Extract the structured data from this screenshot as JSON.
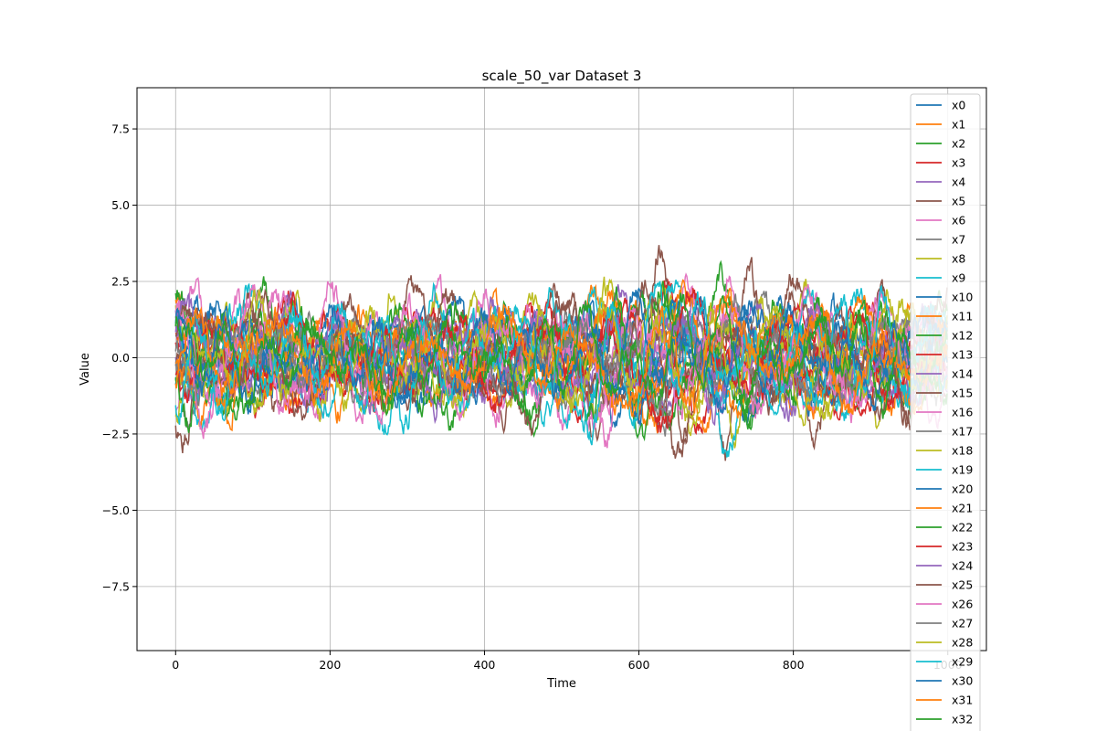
{
  "chart_data": {
    "type": "line",
    "title": "scale_50_var Dataset 3",
    "xlabel": "Time",
    "ylabel": "Value",
    "xlim": [
      -50,
      1050
    ],
    "ylim": [
      -9.6,
      8.85
    ],
    "xticks": [
      0,
      200,
      400,
      600,
      800,
      1000
    ],
    "xtick_labels": [
      "0",
      "200",
      "400",
      "600",
      "800",
      "1000"
    ],
    "yticks": [
      -7.5,
      -5.0,
      -2.5,
      0.0,
      2.5,
      5.0,
      7.5
    ],
    "ytick_labels": [
      "−7.5",
      "−5.0",
      "−2.5",
      "0.0",
      "2.5",
      "5.0",
      "7.5"
    ],
    "grid": true,
    "legend_position": "upper-right",
    "n_points": 1000,
    "palette": [
      "#1f77b4",
      "#ff7f0e",
      "#2ca02c",
      "#d62728",
      "#9467bd",
      "#8c564b",
      "#e377c2",
      "#7f7f7f",
      "#bcbd22",
      "#17becf"
    ],
    "series": [
      {
        "name": "x0",
        "amplitude": 1.6
      },
      {
        "name": "x1",
        "amplitude": 1.7
      },
      {
        "name": "x2",
        "amplitude": 1.9
      },
      {
        "name": "x3",
        "amplitude": 1.8
      },
      {
        "name": "x4",
        "amplitude": 1.6
      },
      {
        "name": "x5",
        "amplitude": 2.3
      },
      {
        "name": "x6",
        "amplitude": 2.0
      },
      {
        "name": "x7",
        "amplitude": 1.5
      },
      {
        "name": "x8",
        "amplitude": 2.0
      },
      {
        "name": "x9",
        "amplitude": 2.2
      },
      {
        "name": "x10",
        "amplitude": 1.5
      },
      {
        "name": "x11",
        "amplitude": 1.6
      },
      {
        "name": "x12",
        "amplitude": 1.7
      },
      {
        "name": "x13",
        "amplitude": 1.6
      },
      {
        "name": "x14",
        "amplitude": 1.5
      },
      {
        "name": "x15",
        "amplitude": 1.8
      },
      {
        "name": "x16",
        "amplitude": 1.7
      },
      {
        "name": "x17",
        "amplitude": 1.4
      },
      {
        "name": "x18",
        "amplitude": 1.6
      },
      {
        "name": "x19",
        "amplitude": 1.7
      },
      {
        "name": "x20",
        "amplitude": 1.4
      },
      {
        "name": "x21",
        "amplitude": 1.5
      },
      {
        "name": "x22",
        "amplitude": 1.6
      },
      {
        "name": "x23",
        "amplitude": 1.5
      },
      {
        "name": "x24",
        "amplitude": 1.4
      },
      {
        "name": "x25",
        "amplitude": 2.1
      },
      {
        "name": "x26",
        "amplitude": 1.9
      },
      {
        "name": "x27",
        "amplitude": 1.3
      },
      {
        "name": "x28",
        "amplitude": 1.6
      },
      {
        "name": "x29",
        "amplitude": 1.8
      },
      {
        "name": "x30",
        "amplitude": 1.4
      },
      {
        "name": "x31",
        "amplitude": 1.5
      },
      {
        "name": "x32",
        "amplitude": 1.5
      }
    ]
  }
}
